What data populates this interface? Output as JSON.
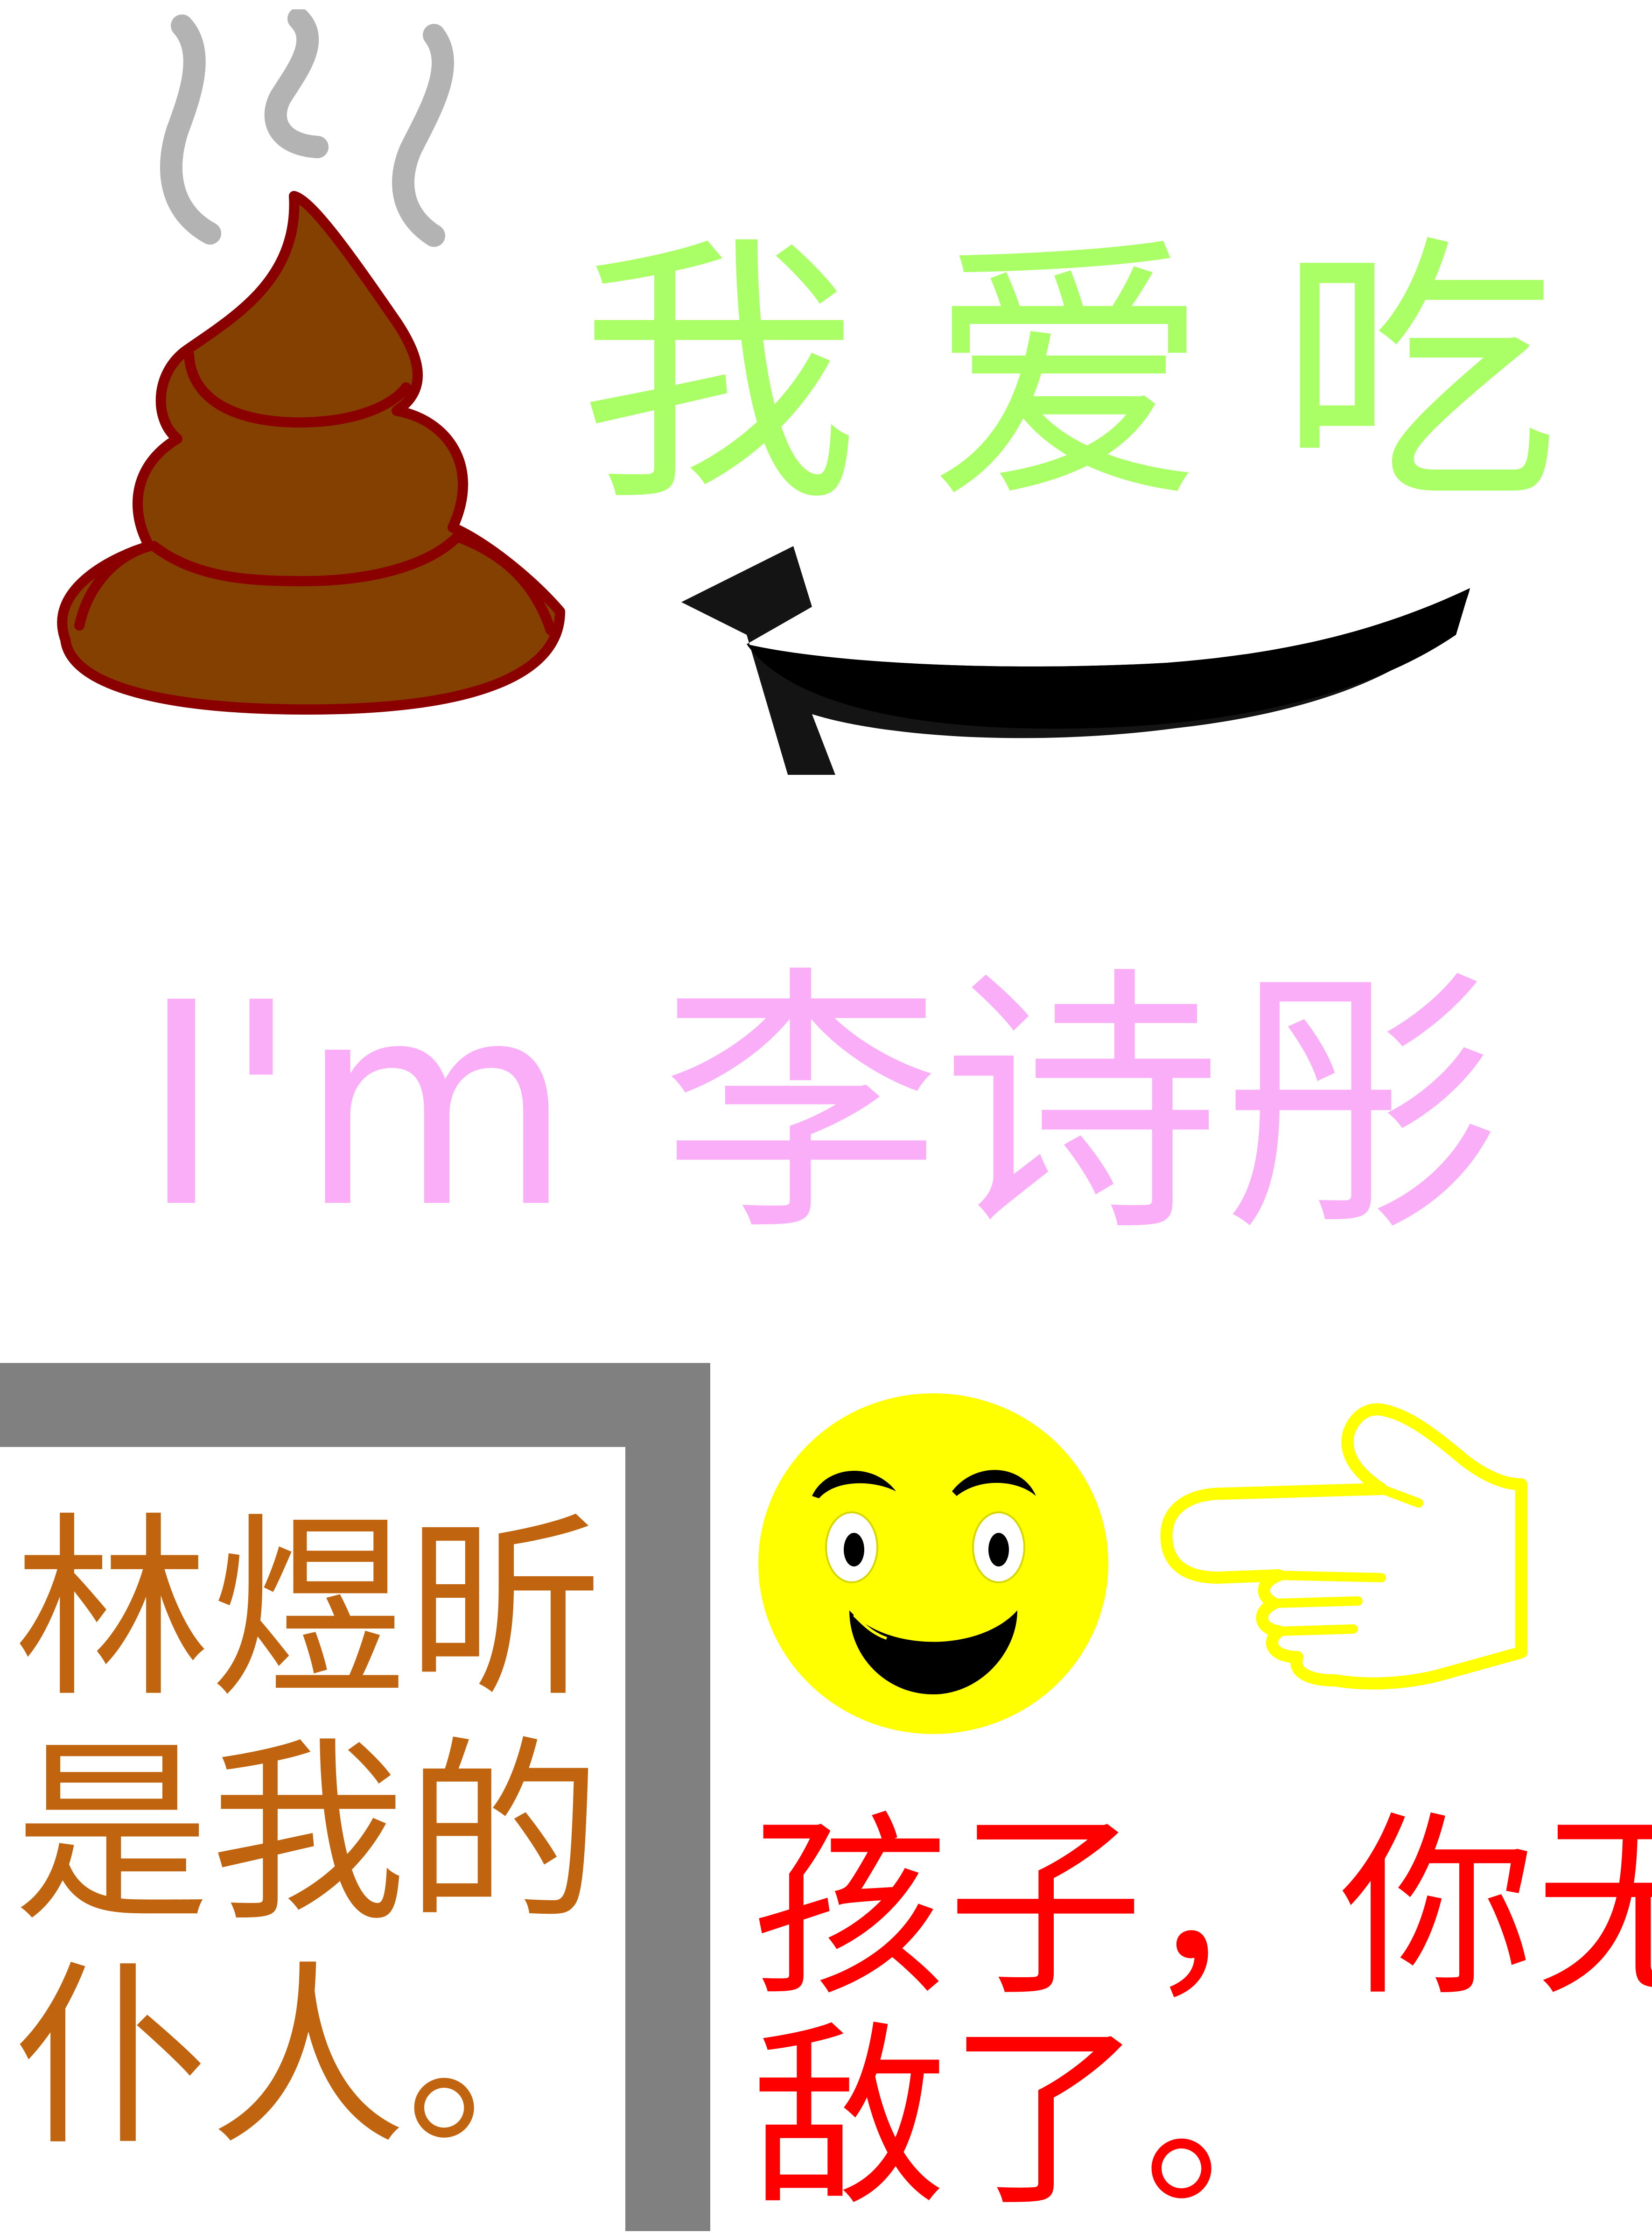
{
  "heading_love": {
    "text": "我爱吃",
    "color": "#aaff66"
  },
  "heading_name": {
    "text": "I'm 李诗彤",
    "color": "#f9aef7"
  },
  "servant_note": {
    "lines": [
      "林煜昕",
      "是我的",
      "仆人。"
    ],
    "color": "#c0640f"
  },
  "invincible_note": {
    "lines": [
      "孩子，你无",
      "敌了。"
    ],
    "color": "#ff0000"
  },
  "icons": {
    "poop": "poop-icon",
    "steam": "steam-icon",
    "arrow": "curved-arrow-icon",
    "smiley": "smiley-face-icon",
    "pointing_hand": "pointing-hand-icon"
  },
  "colors": {
    "poop_fill": "#844000",
    "poop_outline": "#8a0000",
    "steam": "#b3b3b3",
    "arrow": "#000000",
    "smiley_fill": "#ffff00",
    "hand_outline": "#ffff00",
    "frame": "#808080"
  }
}
